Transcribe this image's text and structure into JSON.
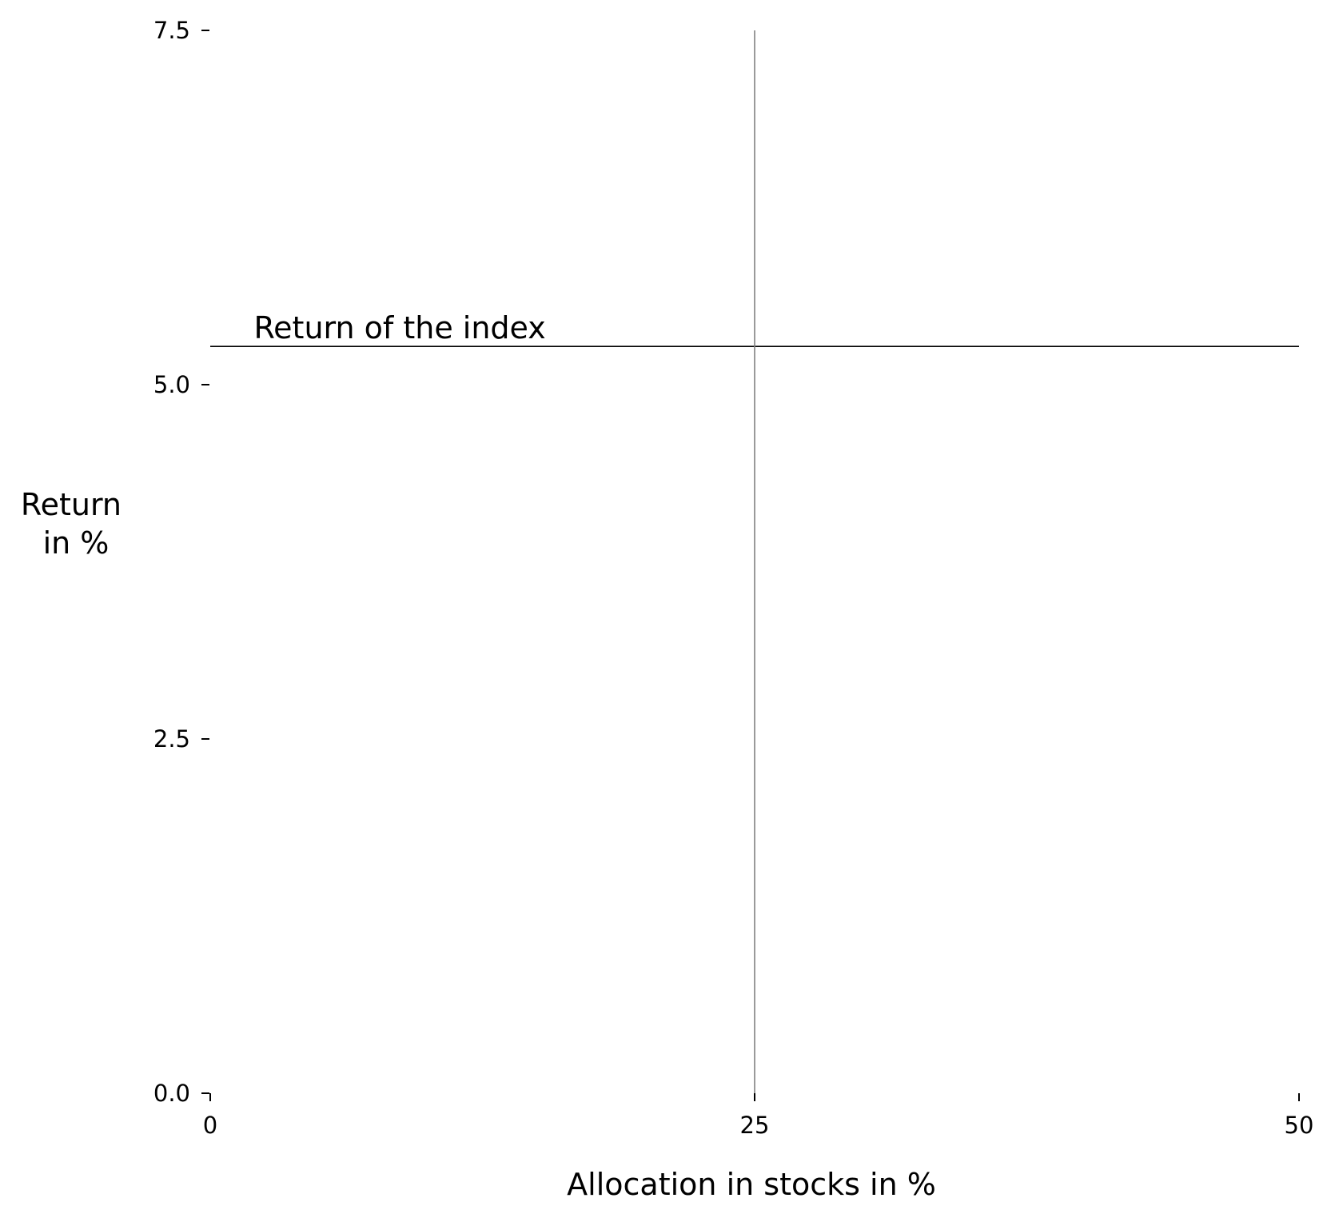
{
  "chart_data": {
    "type": "line",
    "title": "",
    "xlabel": "Allocation in stocks in %",
    "ylabel_lines": [
      "Return",
      "in %"
    ],
    "xlim": [
      0,
      50
    ],
    "ylim": [
      0,
      7.5
    ],
    "x_ticks": [
      {
        "value": 0,
        "label": "0"
      },
      {
        "value": 25,
        "label": "25"
      },
      {
        "value": 50,
        "label": "50"
      }
    ],
    "y_ticks": [
      {
        "value": 0,
        "label": "0.0"
      },
      {
        "value": 2.5,
        "label": "2.5"
      },
      {
        "value": 5,
        "label": "5.0"
      },
      {
        "value": 7.5,
        "label": "7.5"
      }
    ],
    "reference_lines": [
      {
        "orientation": "horizontal",
        "y": 5.27,
        "x_from": 0,
        "x_to": 50,
        "color": "#000000",
        "label": "Return of the index"
      },
      {
        "orientation": "vertical",
        "x": 25,
        "y_from": 0,
        "y_to": 7.5,
        "color": "#808080",
        "label": ""
      }
    ],
    "annotations": [
      {
        "text": "Return of the index",
        "x": 2,
        "y": 5.27
      }
    ],
    "grid": false,
    "legend": "none"
  }
}
